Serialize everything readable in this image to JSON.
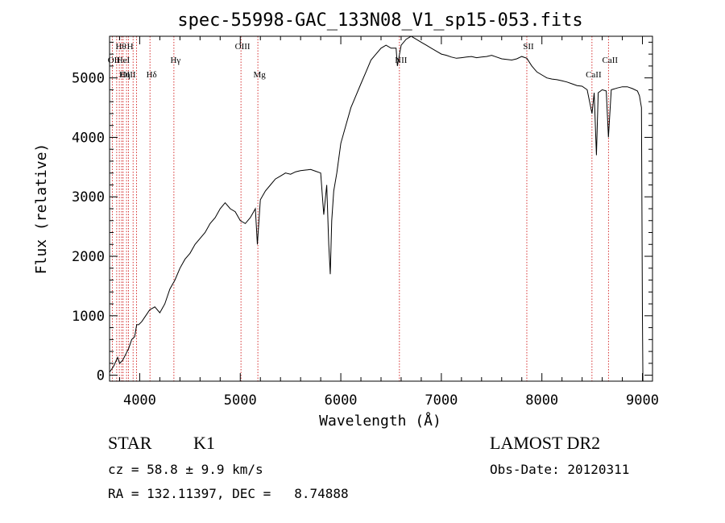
{
  "chart_data": {
    "type": "line",
    "title": "spec-55998-GAC_133N08_V1_sp15-053.fits",
    "xlabel": "Wavelength (Å)",
    "ylabel": "Flux (relative)",
    "xlim": [
      3700,
      9100
    ],
    "ylim": [
      -100,
      5700
    ],
    "x_ticks": [
      4000,
      5000,
      6000,
      7000,
      8000,
      9000
    ],
    "y_ticks": [
      0,
      1000,
      2000,
      3000,
      4000,
      5000
    ],
    "grid": false,
    "series": [
      {
        "x": [
          3700,
          3740,
          3780,
          3800,
          3830,
          3860,
          3890,
          3920,
          3950,
          3970,
          3990,
          4020,
          4060,
          4100,
          4150,
          4200,
          4250,
          4300,
          4350,
          4400,
          4450,
          4500,
          4550,
          4600,
          4650,
          4700,
          4750,
          4800,
          4850,
          4900,
          4950,
          5000,
          5050,
          5100,
          5150,
          5170,
          5200,
          5250,
          5300,
          5350,
          5400,
          5450,
          5500,
          5550,
          5600,
          5650,
          5700,
          5750,
          5800,
          5830,
          5860,
          5880,
          5895,
          5910,
          5930,
          5960,
          6000,
          6050,
          6100,
          6150,
          6200,
          6250,
          6300,
          6350,
          6400,
          6450,
          6500,
          6550,
          6563,
          6600,
          6650,
          6700,
          6750,
          6800,
          6850,
          6900,
          6950,
          7000,
          7050,
          7100,
          7150,
          7200,
          7250,
          7300,
          7350,
          7400,
          7450,
          7500,
          7550,
          7600,
          7650,
          7700,
          7750,
          7800,
          7850,
          7900,
          7950,
          8000,
          8050,
          8100,
          8150,
          8200,
          8250,
          8300,
          8350,
          8400,
          8450,
          8498,
          8520,
          8542,
          8560,
          8600,
          8640,
          8662,
          8690,
          8750,
          8800,
          8850,
          8900,
          8950,
          8970,
          8990,
          9000,
          9005
        ],
        "y": [
          50,
          150,
          300,
          200,
          250,
          350,
          450,
          600,
          650,
          850,
          850,
          900,
          1000,
          1100,
          1150,
          1050,
          1200,
          1450,
          1600,
          1800,
          1950,
          2050,
          2200,
          2300,
          2400,
          2550,
          2650,
          2800,
          2900,
          2800,
          2750,
          2600,
          2550,
          2650,
          2800,
          2200,
          2950,
          3100,
          3200,
          3300,
          3350,
          3400,
          3380,
          3420,
          3440,
          3450,
          3460,
          3430,
          3400,
          2700,
          3200,
          2200,
          1700,
          2600,
          3100,
          3400,
          3900,
          4200,
          4500,
          4700,
          4900,
          5100,
          5300,
          5400,
          5500,
          5550,
          5500,
          5500,
          5200,
          5550,
          5650,
          5700,
          5650,
          5600,
          5550,
          5500,
          5450,
          5400,
          5380,
          5350,
          5330,
          5340,
          5350,
          5360,
          5340,
          5350,
          5360,
          5380,
          5350,
          5320,
          5310,
          5300,
          5320,
          5360,
          5330,
          5200,
          5100,
          5050,
          5000,
          4980,
          4970,
          4950,
          4930,
          4900,
          4870,
          4860,
          4800,
          4400,
          4750,
          3700,
          4750,
          4800,
          4780,
          4000,
          4800,
          4830,
          4850,
          4850,
          4820,
          4780,
          4700,
          4500,
          1000,
          -100
        ]
      }
    ],
    "lines": [
      {
        "label": "Hθ",
        "x": 3797,
        "row": 1
      },
      {
        "label": "H",
        "x": 3889,
        "row": 1
      },
      {
        "label": "OII",
        "x": 3727,
        "row": 2
      },
      {
        "label": "HeI",
        "x": 3820,
        "row": 2
      },
      {
        "label": "Hγ",
        "x": 4340,
        "row": 2
      },
      {
        "label": "OIII",
        "x": 3869,
        "row": 3
      },
      {
        "label": "Hη",
        "x": 3835,
        "row": 3
      },
      {
        "label": "Hδ",
        "x": 4102,
        "row": 3
      },
      {
        "label": "OIII",
        "x": 5007,
        "row": 1
      },
      {
        "label": "Mg",
        "x": 5175,
        "row": 3
      },
      {
        "label": "NII",
        "x": 6583,
        "row": 2
      },
      {
        "label": "SII",
        "x": 7850,
        "row": 1
      },
      {
        "label": "CaII",
        "x": 8498,
        "row": 3
      },
      {
        "label": "CaII",
        "x": 8662,
        "row": 2
      }
    ],
    "extra_lines_x": [
      3934,
      3968,
      3771
    ]
  },
  "info": {
    "object_class": "STAR",
    "subclass": "K1",
    "survey": "LAMOST DR2",
    "cz": "cz = 58.8 ± 9.9 km/s",
    "obs_date": "Obs-Date: 20120311",
    "coords": "RA = 132.11397, DEC =   8.74888"
  },
  "colors": {
    "spectrum": "#000000",
    "line_marker": "#cc0000",
    "text": "#000000"
  }
}
